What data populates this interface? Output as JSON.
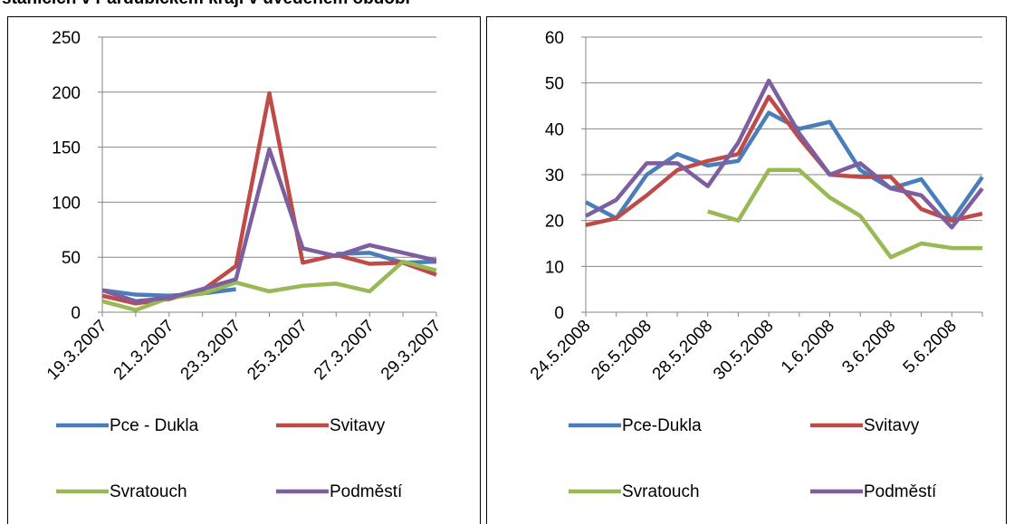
{
  "title": "stanicích v Pardubickém kraji v uvedeném období",
  "chart_data": [
    {
      "type": "line",
      "categories": [
        "19.3.2007",
        null,
        "21.3.2007",
        null,
        "23.3.2007",
        null,
        "25.3.2007",
        null,
        "27.3.2007",
        null,
        "29.3.2007"
      ],
      "ylim": [
        0,
        250
      ],
      "yticks": [
        0,
        50,
        100,
        150,
        200,
        250
      ],
      "grid": true,
      "series": [
        {
          "name": "Pce - Dukla",
          "color": "#4a7ebb",
          "values": [
            20,
            16,
            15,
            17,
            21,
            null,
            null,
            53,
            54,
            45,
            46
          ]
        },
        {
          "name": "Svitavy",
          "color": "#be4b48",
          "values": [
            15,
            8,
            12,
            20,
            42,
            199,
            45,
            52,
            44,
            45,
            34
          ]
        },
        {
          "name": "Svratouch",
          "color": "#98b954",
          "values": [
            10,
            2,
            13,
            17,
            27,
            19,
            24,
            26,
            19,
            46,
            38
          ]
        },
        {
          "name": "Podměstí",
          "color": "#7d5fa0",
          "values": [
            20,
            10,
            13,
            21,
            30,
            148,
            58,
            51,
            61,
            54,
            47
          ]
        }
      ]
    },
    {
      "type": "line",
      "categories": [
        "24.5.2008",
        null,
        "26.5.2008",
        null,
        "28.5.2008",
        null,
        "30.5.2008",
        null,
        "1.6.2008",
        null,
        "3.6.2008",
        null,
        "5.6.2008",
        null
      ],
      "ylim": [
        0,
        60
      ],
      "yticks": [
        0,
        10,
        20,
        30,
        40,
        50,
        60
      ],
      "grid": true,
      "series": [
        {
          "name": "Pce-Dukla",
          "color": "#4a7ebb",
          "values": [
            24,
            20.5,
            30,
            34.5,
            32,
            33,
            43.5,
            40,
            41.5,
            31,
            27,
            29,
            20,
            29.5
          ]
        },
        {
          "name": "Svitavy",
          "color": "#be4b48",
          "values": [
            19,
            20.5,
            25.5,
            31,
            33,
            34.5,
            47,
            38,
            30,
            29.5,
            29.5,
            22.5,
            20,
            21.5
          ]
        },
        {
          "name": "Svratouch",
          "color": "#98b954",
          "values": [
            null,
            null,
            null,
            null,
            22,
            20,
            31,
            31,
            25,
            21,
            12,
            15,
            14,
            14
          ]
        },
        {
          "name": "Podměstí",
          "color": "#7d5fa0",
          "values": [
            21,
            24.5,
            32.5,
            32.5,
            27.5,
            37,
            50.5,
            39,
            30,
            32.5,
            27,
            25.5,
            18.5,
            27
          ]
        }
      ]
    }
  ]
}
